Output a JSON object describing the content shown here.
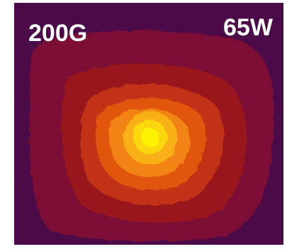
{
  "labels": {
    "field": "200G",
    "power": "65W"
  }
}
